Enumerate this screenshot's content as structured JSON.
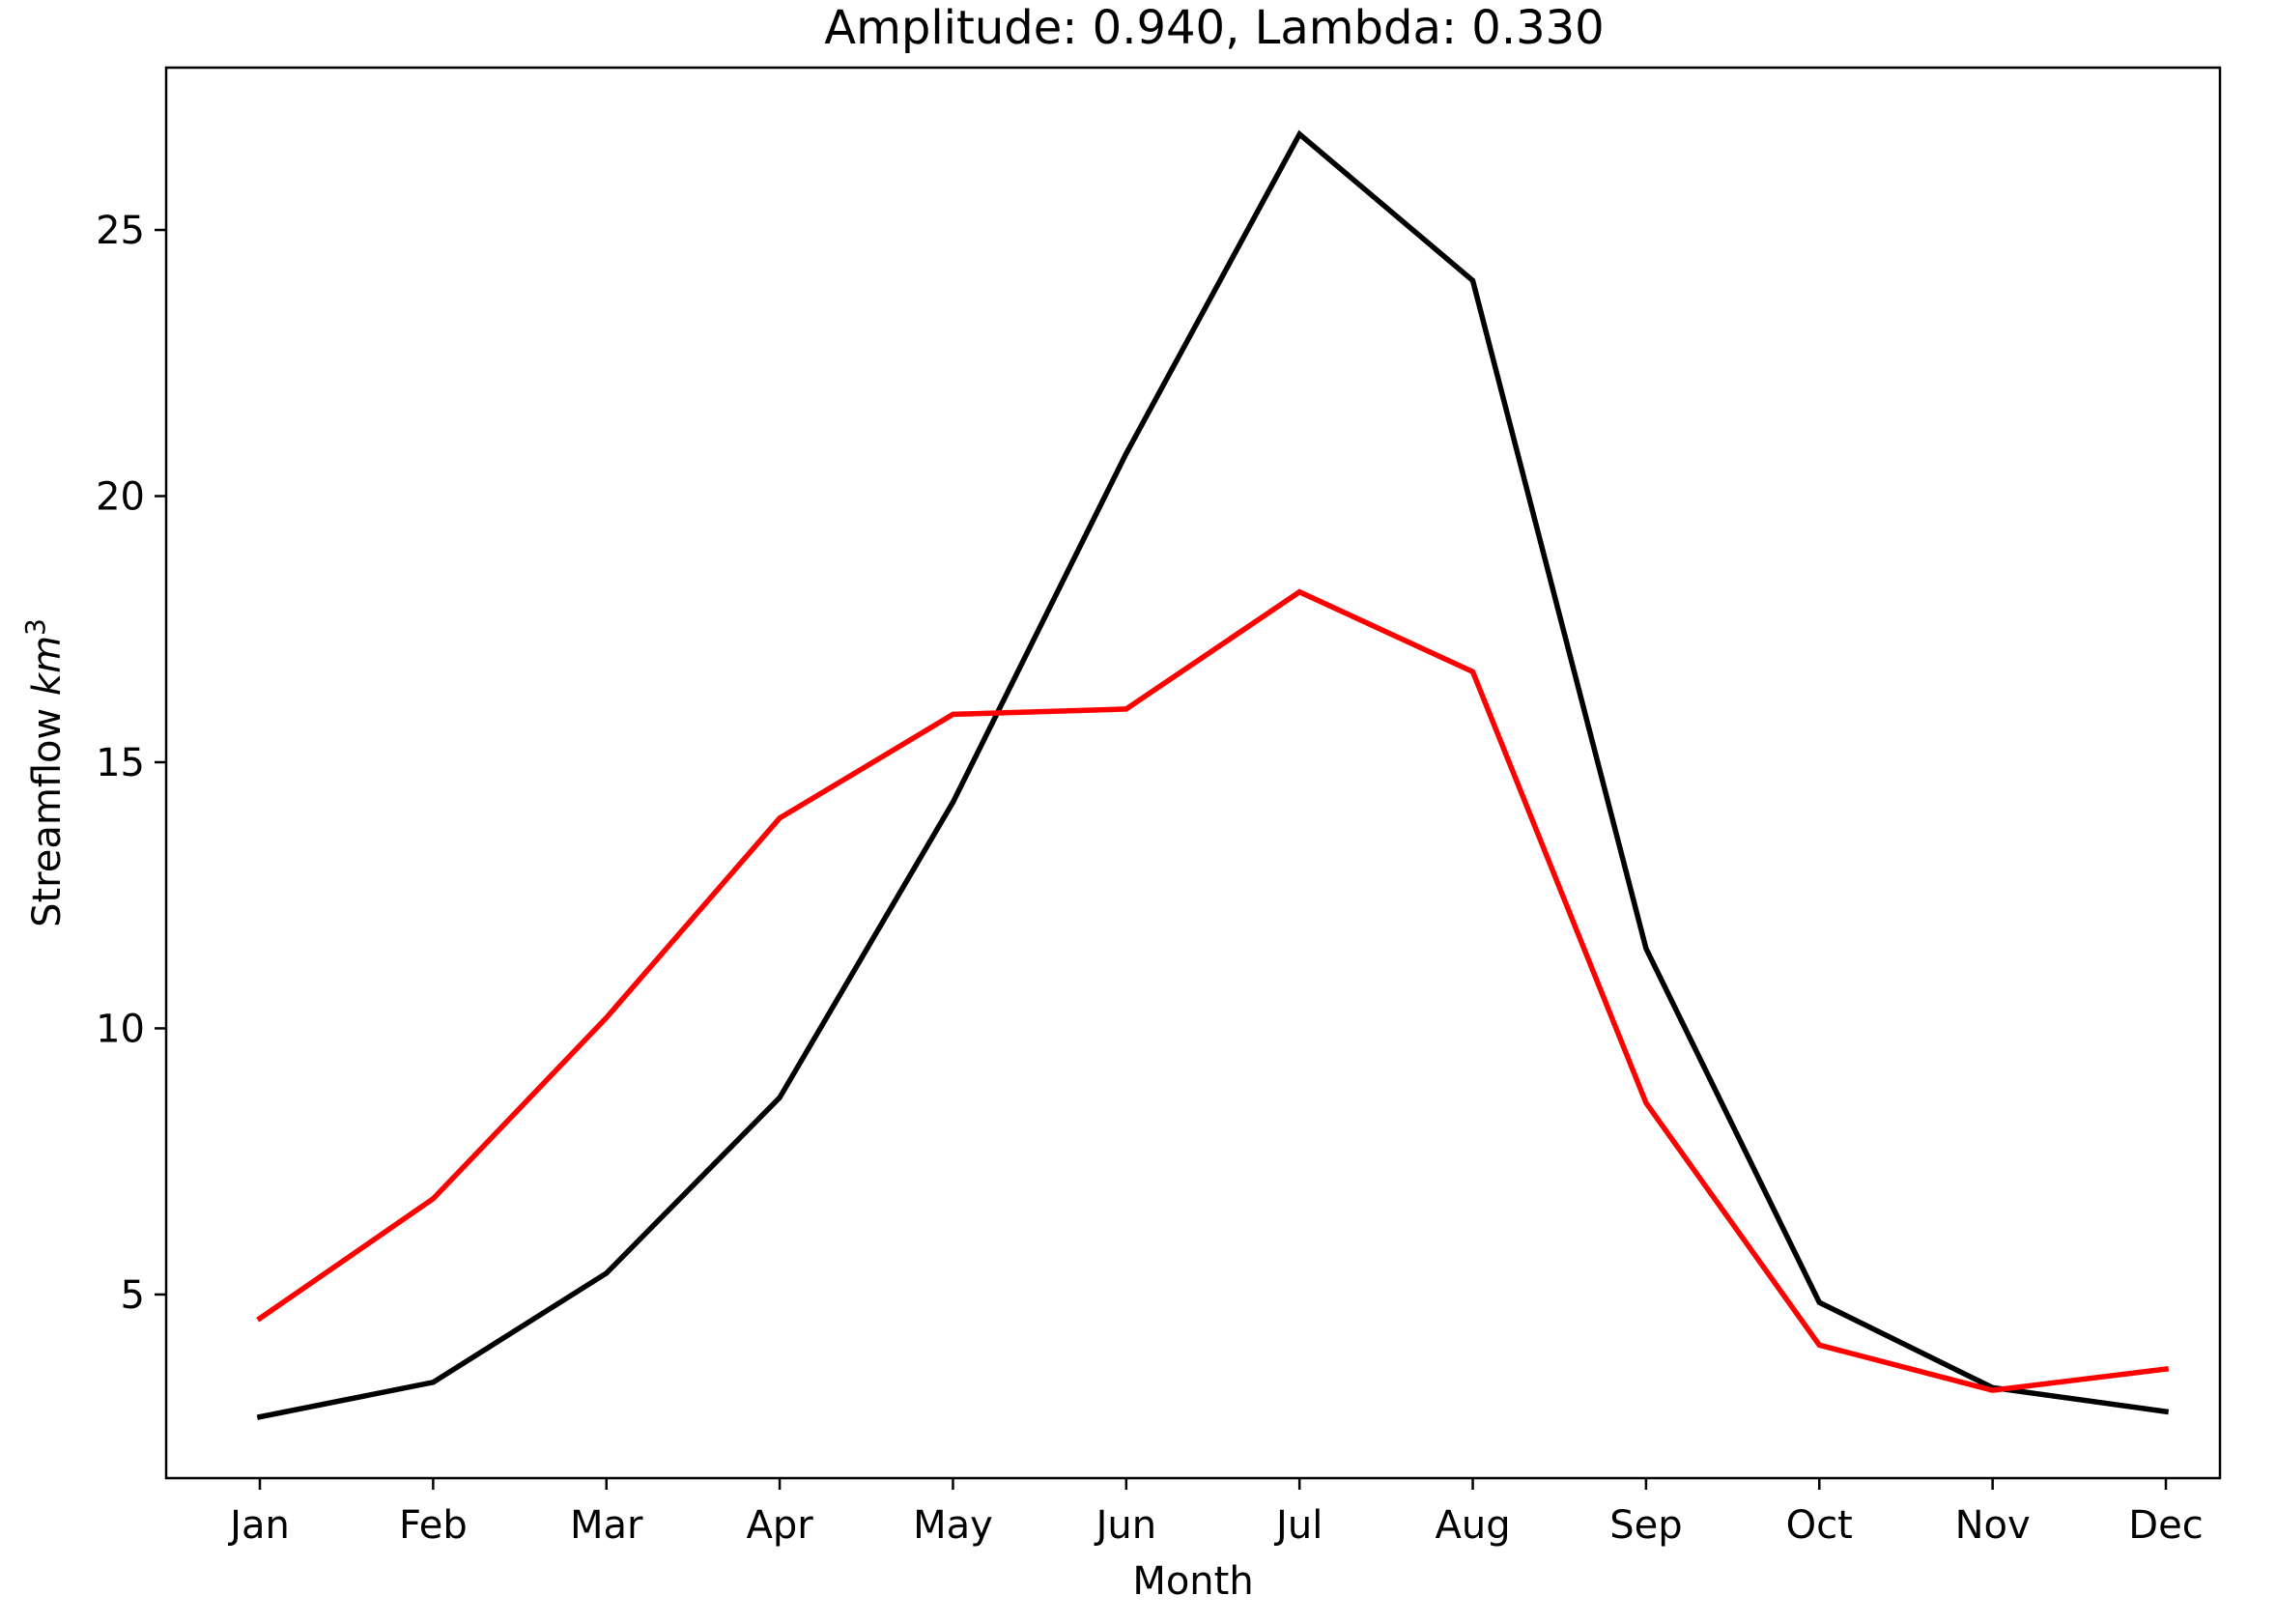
{
  "chart_data": {
    "type": "line",
    "title": "Amplitude: 0.940, Lambda: 0.330",
    "xlabel": "Month",
    "ylabel": "Streamflow ",
    "ylabel_unit": "km",
    "ylabel_unit_sup": "3",
    "categories": [
      "Jan",
      "Feb",
      "Mar",
      "Apr",
      "May",
      "Jun",
      "Jul",
      "Aug",
      "Sep",
      "Oct",
      "Nov",
      "Dec"
    ],
    "yticks": [
      5,
      10,
      15,
      20,
      25
    ],
    "ylim": [
      1.55,
      28.05
    ],
    "grid": false,
    "series": [
      {
        "color": "#000000",
        "values": [
          2.7,
          3.35,
          5.4,
          8.7,
          14.25,
          20.8,
          26.8,
          24.05,
          11.5,
          4.85,
          3.25,
          2.8
        ]
      },
      {
        "color": "#ff0000",
        "values": [
          4.55,
          6.8,
          10.2,
          13.95,
          15.9,
          16.0,
          18.2,
          16.7,
          8.6,
          4.05,
          3.2,
          3.6
        ]
      }
    ]
  }
}
